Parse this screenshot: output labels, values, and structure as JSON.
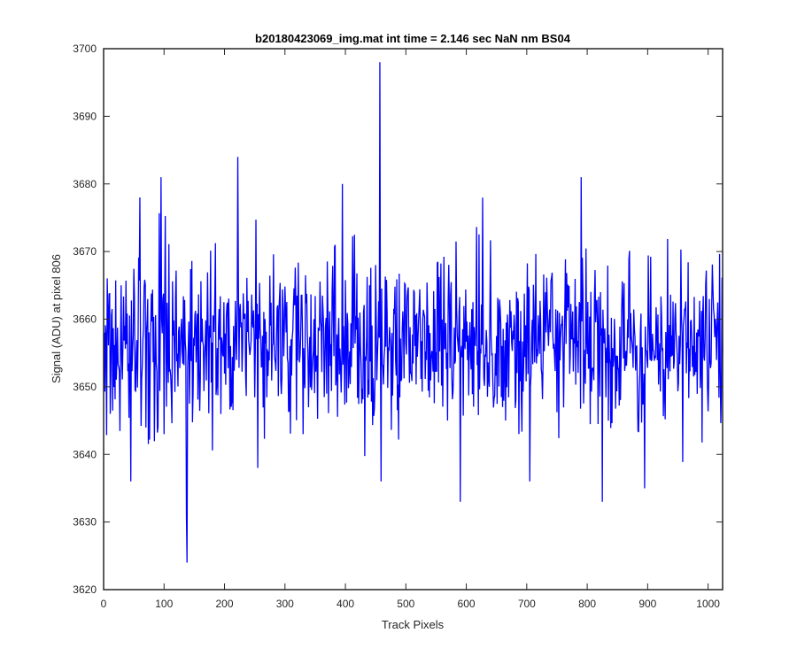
{
  "chart_data": {
    "type": "line",
    "title": "b20180423069_img.mat int time = 2.146 sec  NaN nm BS04",
    "xlabel": "Track Pixels",
    "ylabel": "Signal (ADU) at pixel 806",
    "xlim": [
      0,
      1024
    ],
    "ylim": [
      3620,
      3700
    ],
    "xticks": [
      "0",
      "100",
      "200",
      "300",
      "400",
      "500",
      "600",
      "700",
      "800",
      "900",
      "1000"
    ],
    "yticks": [
      "3620",
      "3630",
      "3640",
      "3650",
      "3660",
      "3670",
      "3680",
      "3690",
      "3700"
    ],
    "grid": false,
    "line_color": "#0000ff",
    "series": [
      {
        "n_points": 1024,
        "noise_baseline": 3656.5,
        "noise_range": [
          3636,
          3681
        ],
        "notable_points": [
          {
            "x": 1,
            "y": 3658
          },
          {
            "x": 45,
            "y": 3636
          },
          {
            "x": 60,
            "y": 3678
          },
          {
            "x": 95,
            "y": 3681
          },
          {
            "x": 100,
            "y": 3643
          },
          {
            "x": 137,
            "y": 3631
          },
          {
            "x": 138,
            "y": 3624
          },
          {
            "x": 222,
            "y": 3684
          },
          {
            "x": 255,
            "y": 3638
          },
          {
            "x": 330,
            "y": 3643
          },
          {
            "x": 395,
            "y": 3680
          },
          {
            "x": 450,
            "y": 3668
          },
          {
            "x": 457,
            "y": 3698
          },
          {
            "x": 459,
            "y": 3636
          },
          {
            "x": 590,
            "y": 3633
          },
          {
            "x": 705,
            "y": 3636
          },
          {
            "x": 790,
            "y": 3681
          },
          {
            "x": 825,
            "y": 3633
          },
          {
            "x": 895,
            "y": 3635
          },
          {
            "x": 1024,
            "y": 3655
          }
        ]
      }
    ]
  }
}
